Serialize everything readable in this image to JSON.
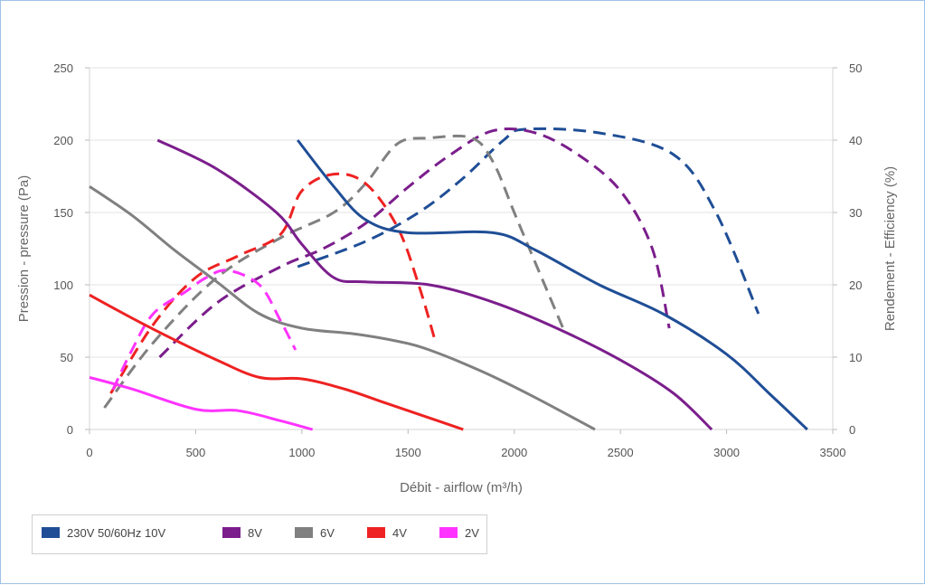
{
  "chart_data": {
    "type": "line",
    "xlabel": "Débit - airflow (m³/h)",
    "ylabel_left": "Pression - pressure (Pa)",
    "ylabel_right": "Rendement - Efficiency (%)",
    "xlim": [
      0,
      3500
    ],
    "ylim_left": [
      0,
      250
    ],
    "ylim_right": [
      0,
      50
    ],
    "x_ticks": [
      "0",
      "500",
      "1000",
      "1500",
      "2000",
      "2500",
      "3000",
      "3500"
    ],
    "y_left_ticks": [
      "0",
      "50",
      "100",
      "150",
      "200",
      "250"
    ],
    "y_right_ticks": [
      "0",
      "10",
      "20",
      "30",
      "40",
      "50"
    ],
    "grid": true,
    "legend_position": "bottom-left",
    "series": [
      {
        "name": "230V 50/60Hz 10V",
        "color": "#1f4e96",
        "pressure": [
          [
            980,
            200
          ],
          [
            1150,
            168
          ],
          [
            1300,
            145
          ],
          [
            1500,
            136
          ],
          [
            1900,
            136
          ],
          [
            2100,
            124
          ],
          [
            2400,
            100
          ],
          [
            2700,
            80
          ],
          [
            3000,
            52
          ],
          [
            3200,
            25
          ],
          [
            3380,
            0
          ]
        ],
        "efficiency": [
          [
            980,
            22.5
          ],
          [
            1300,
            26
          ],
          [
            1550,
            30
          ],
          [
            1750,
            34.5
          ],
          [
            1950,
            40
          ],
          [
            2050,
            41.5
          ],
          [
            2400,
            41
          ],
          [
            2750,
            38
          ],
          [
            2950,
            30
          ],
          [
            3150,
            16
          ]
        ]
      },
      {
        "name": "8V",
        "color": "#7b1e8c",
        "pressure": [
          [
            320,
            200
          ],
          [
            600,
            180
          ],
          [
            880,
            150
          ],
          [
            1000,
            128
          ],
          [
            1150,
            105
          ],
          [
            1300,
            102
          ],
          [
            1600,
            100
          ],
          [
            1900,
            88
          ],
          [
            2200,
            70
          ],
          [
            2500,
            48
          ],
          [
            2750,
            25
          ],
          [
            2930,
            0
          ]
        ],
        "efficiency": [
          [
            330,
            10
          ],
          [
            600,
            17.5
          ],
          [
            900,
            22.5
          ],
          [
            1100,
            25
          ],
          [
            1300,
            28.5
          ],
          [
            1500,
            33.5
          ],
          [
            1700,
            38
          ],
          [
            1900,
            41.3
          ],
          [
            2100,
            41
          ],
          [
            2300,
            38
          ],
          [
            2500,
            33
          ],
          [
            2650,
            25
          ],
          [
            2730,
            14
          ]
        ]
      },
      {
        "name": "6V",
        "color": "#808080",
        "pressure": [
          [
            0,
            168
          ],
          [
            200,
            148
          ],
          [
            400,
            124
          ],
          [
            600,
            102
          ],
          [
            800,
            80
          ],
          [
            1000,
            70
          ],
          [
            1250,
            66
          ],
          [
            1450,
            61
          ],
          [
            1600,
            55
          ],
          [
            1850,
            40
          ],
          [
            2100,
            22
          ],
          [
            2380,
            0
          ]
        ],
        "efficiency": [
          [
            70,
            3
          ],
          [
            300,
            12
          ],
          [
            600,
            21
          ],
          [
            900,
            26.5
          ],
          [
            1150,
            30
          ],
          [
            1300,
            34
          ],
          [
            1450,
            39.5
          ],
          [
            1600,
            40.3
          ],
          [
            1800,
            40.3
          ],
          [
            1900,
            37
          ],
          [
            2000,
            30
          ],
          [
            2100,
            23
          ],
          [
            2230,
            14
          ]
        ]
      },
      {
        "name": "4V",
        "color": "#ee2222",
        "pressure": [
          [
            0,
            93
          ],
          [
            200,
            77
          ],
          [
            400,
            62
          ],
          [
            600,
            48
          ],
          [
            800,
            36
          ],
          [
            1000,
            35
          ],
          [
            1200,
            28
          ],
          [
            1400,
            18
          ],
          [
            1600,
            8
          ],
          [
            1760,
            0
          ]
        ],
        "efficiency": [
          [
            100,
            5
          ],
          [
            300,
            14.5
          ],
          [
            500,
            21
          ],
          [
            700,
            24
          ],
          [
            900,
            27
          ],
          [
            1000,
            33
          ],
          [
            1150,
            35.3
          ],
          [
            1300,
            34
          ],
          [
            1450,
            28
          ],
          [
            1550,
            20
          ],
          [
            1630,
            12
          ]
        ]
      },
      {
        "name": "2V",
        "color": "#ff33ff",
        "pressure": [
          [
            0,
            36
          ],
          [
            200,
            28
          ],
          [
            500,
            14
          ],
          [
            700,
            13
          ],
          [
            900,
            6
          ],
          [
            1050,
            0
          ]
        ],
        "efficiency": [
          [
            110,
            5.5
          ],
          [
            200,
            11
          ],
          [
            300,
            16
          ],
          [
            450,
            19
          ],
          [
            550,
            21
          ],
          [
            650,
            22
          ],
          [
            800,
            20
          ],
          [
            900,
            15
          ],
          [
            970,
            11
          ]
        ]
      }
    ]
  }
}
